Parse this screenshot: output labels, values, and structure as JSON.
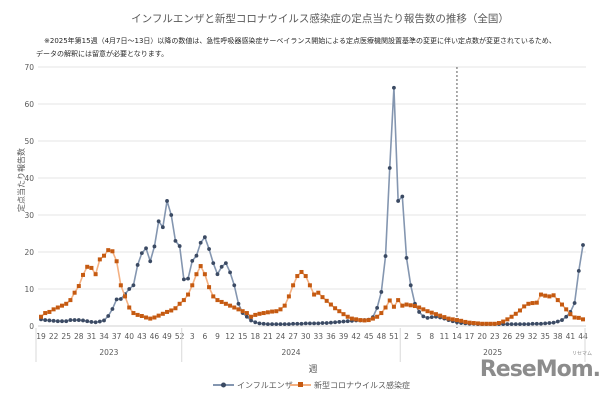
{
  "chart_data": {
    "type": "line",
    "title": "インフルエンザと新型コロナウイルス感染症の定点当たり報告数の推移（全国）",
    "note_lines": [
      "※2025年第15週（4月7日〜13日）以降の数値は、急性呼吸器感染症サーベイランス開始による定点医療機関設置基準の変更に伴い定点数が変更されているため、",
      "データの解釈には留意が必要となります。"
    ],
    "xlabel": "週",
    "ylabel": "定点当たり報告数",
    "ylim": [
      0,
      70
    ],
    "yticks": [
      0,
      10,
      20,
      30,
      40,
      50,
      60,
      70
    ],
    "grid": "horizontal",
    "legend_position": "bottom",
    "years": [
      {
        "label": "2023",
        "first_week": 19,
        "last_week": 52,
        "tick_labels": [
          "19",
          "22",
          "25",
          "28",
          "31",
          "34",
          "37",
          "40",
          "43",
          "46",
          "49",
          "52"
        ]
      },
      {
        "label": "2024",
        "first_week": 1,
        "last_week": 52,
        "tick_labels": [
          "3",
          "6",
          "9",
          "12",
          "15",
          "18",
          "21",
          "24",
          "27",
          "30",
          "33",
          "36",
          "39",
          "42",
          "45",
          "48",
          "51"
        ]
      },
      {
        "label": "2025",
        "first_week": 1,
        "last_week": 44,
        "tick_labels": [
          "2",
          "5",
          "8",
          "11",
          "14",
          "17",
          "20",
          "23",
          "26",
          "29",
          "32",
          "35",
          "38",
          "41",
          "44"
        ]
      }
    ],
    "dashed_line_at": {
      "year": "2025",
      "week": 14
    },
    "series": [
      {
        "name": "インフルエンザ",
        "color": "#3b4a63",
        "line_color": "#8496b0",
        "marker": "circle",
        "values": [
          1.8,
          1.6,
          1.5,
          1.4,
          1.3,
          1.3,
          1.3,
          1.6,
          1.6,
          1.6,
          1.5,
          1.3,
          1.1,
          1.0,
          1.2,
          1.5,
          2.7,
          4.6,
          7.2,
          7.3,
          8.6,
          10,
          11,
          16.5,
          19.7,
          21,
          17.5,
          21.5,
          28.3,
          26.7,
          33.8,
          30,
          23,
          21.6,
          12.6,
          12.8,
          17.6,
          19,
          22.5,
          24,
          20.8,
          17,
          14,
          16,
          17,
          14.5,
          11,
          6,
          3.5,
          2.5,
          1.5,
          1.0,
          0.7,
          0.6,
          0.5,
          0.5,
          0.5,
          0.5,
          0.5,
          0.5,
          0.6,
          0.6,
          0.6,
          0.7,
          0.7,
          0.7,
          0.7,
          0.8,
          0.8,
          0.9,
          1.0,
          1.1,
          1.2,
          1.3,
          1.4,
          1.5,
          1.5,
          1.6,
          1.7,
          2.4,
          4.9,
          9.2,
          18.9,
          42.7,
          64.4,
          33.8,
          35,
          18.4,
          11,
          6,
          3.8,
          2.6,
          2.2,
          2.4,
          2.5,
          2.3,
          2.0,
          1.6,
          1.3,
          1.0,
          0.8,
          0.7,
          0.6,
          0.6,
          0.5,
          0.5,
          0.5,
          0.5,
          0.5,
          0.5,
          0.5,
          0.5,
          0.5,
          0.5,
          0.5,
          0.5,
          0.5,
          0.6,
          0.6,
          0.6,
          0.7,
          0.8,
          0.9,
          1.2,
          1.6,
          2.5,
          3.8,
          6.2,
          14.9,
          21.9
        ]
      },
      {
        "name": "新型コロナウイルス感染症",
        "color": "#c55a11",
        "line_color": "#f4b183",
        "marker": "square",
        "values": [
          2.5,
          3.5,
          3.8,
          4.5,
          5,
          5.5,
          6,
          7,
          9,
          10.8,
          13.8,
          16,
          15.7,
          14,
          18,
          19,
          20.5,
          20.2,
          17.5,
          11,
          8,
          5,
          3.5,
          3,
          2.7,
          2.3,
          2,
          2.3,
          2.8,
          3.3,
          3.8,
          4.2,
          4.8,
          6,
          7,
          8.5,
          11,
          14,
          16.2,
          14,
          10.5,
          8,
          7,
          6.5,
          6,
          5.5,
          5,
          4.5,
          4,
          3.5,
          2.5,
          3,
          3.3,
          3.5,
          3.7,
          3.9,
          4,
          4.5,
          5.5,
          8,
          11,
          13.5,
          14.6,
          13.5,
          11,
          8.5,
          9,
          7.8,
          6.8,
          5.8,
          4.8,
          4,
          3.2,
          2.5,
          2,
          1.8,
          1.6,
          1.5,
          1.6,
          2,
          2.5,
          3.5,
          5,
          6.9,
          5.2,
          7,
          5.5,
          5.8,
          5.6,
          5.4,
          5,
          4.5,
          4,
          3.6,
          3.2,
          2.8,
          2.4,
          2,
          1.8,
          1.6,
          1.4,
          1.1,
          0.9,
          0.8,
          0.7,
          0.6,
          0.6,
          0.6,
          0.6,
          0.8,
          1.2,
          1.8,
          2.5,
          3.3,
          4.2,
          5.3,
          6,
          6.2,
          6.3,
          8.5,
          8.2,
          8,
          8.3,
          7,
          5.8,
          4.5,
          3.2,
          2.3,
          2.2,
          1.8
        ]
      }
    ]
  },
  "watermark": {
    "text": "ReseMom",
    "subtext": "リセマム"
  }
}
